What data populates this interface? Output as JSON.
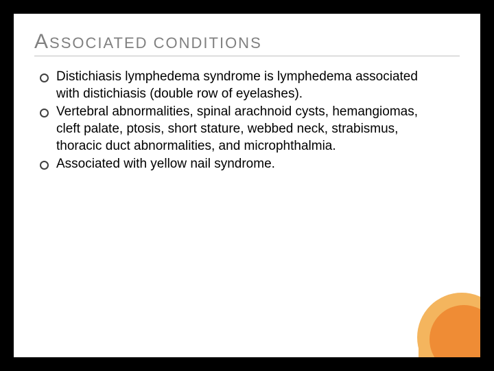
{
  "title": {
    "firstLetter": "A",
    "rest": "SSOCIATED CONDITIONS",
    "color": "#808080",
    "letterSpacing": 2,
    "fontSizeSmall": 22,
    "fontSizeLarge": 30
  },
  "bullets": {
    "items": [
      "Distichiasis lymphedema syndrome is lymphedema associated with distichiasis (double row of eyelashes).",
      "Vertebral abnormalities, spinal arachnoid cysts, hemangiomas, cleft palate, ptosis, short stature, webbed neck, strabismus, thoracic duct abnormalities, and microphthalmia.",
      "Associated with yellow nail syndrome."
    ],
    "fontSize": 19,
    "textColor": "#000000",
    "markerBorderColor": "#404040"
  },
  "colors": {
    "pageBackground": "#000000",
    "slideBackground": "#ffffff",
    "accentLight": "#f4b55e",
    "accentDark": "#ef8c35",
    "dividerColor": "#c0c0c0"
  },
  "layout": {
    "slideWidth": 680,
    "slideHeight": 500,
    "borderWidth": 20
  }
}
